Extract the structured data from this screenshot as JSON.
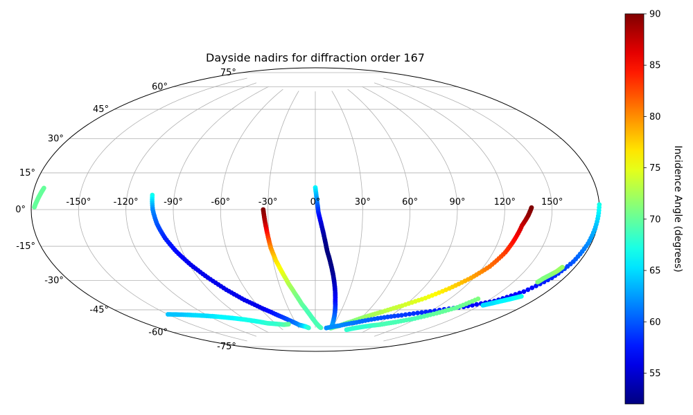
{
  "chart_data": {
    "type": "scatter",
    "projection": "aitoff",
    "title": "Dayside nadirs for diffraction order 167",
    "xlabel": "",
    "ylabel": "",
    "lon_ticks": [
      -150,
      -120,
      -90,
      -60,
      -30,
      0,
      30,
      60,
      90,
      120,
      150
    ],
    "lon_tick_labels": [
      "-150°",
      "-120°",
      "-90°",
      "-60°",
      "-30°",
      "0°",
      "30°",
      "60°",
      "90°",
      "120°",
      "150°"
    ],
    "lat_ticks": [
      75,
      60,
      45,
      30,
      15,
      0,
      -15,
      -30,
      -45,
      -60,
      -75
    ],
    "lat_tick_labels": [
      "75°",
      "60°",
      "45°",
      "30°",
      "15°",
      "0°",
      "-15°",
      "-30°",
      "-45°",
      "-60°",
      "-75°"
    ],
    "grid": true,
    "colorbar": {
      "label": "Incidence Angle (degrees)",
      "colormap": "jet",
      "range": [
        52,
        90
      ],
      "ticks": [
        55,
        60,
        65,
        70,
        75,
        80,
        85,
        90
      ],
      "tick_labels": [
        "55",
        "60",
        "65",
        "70",
        "75",
        "80",
        "85",
        "90"
      ]
    },
    "series": [
      {
        "lon": [
          -178,
          -177,
          -176,
          -175,
          -174
        ],
        "lat": [
          1,
          3,
          5,
          7,
          9
        ],
        "incidence": [
          70,
          70,
          70,
          70,
          70
        ]
      },
      {
        "lon": [
          -104,
          -103,
          -101,
          -98,
          -94,
          -89,
          -83,
          -76,
          -68,
          -58,
          -47,
          -36,
          -26,
          -18,
          -12
        ],
        "lat": [
          8,
          0,
          -8,
          -16,
          -24,
          -32,
          -40,
          -48,
          -55,
          -61,
          -66,
          -70,
          -73,
          -74,
          -75
        ],
        "incidence": [
          67,
          62,
          60,
          58,
          57,
          56,
          56,
          56,
          56,
          56,
          58,
          60,
          62,
          65,
          68
        ]
      },
      {
        "lon": [
          -33,
          -32,
          -31,
          -30,
          -28,
          -25,
          -22,
          -18,
          -14,
          -9,
          -4,
          1,
          6,
          10
        ],
        "lat": [
          0,
          -8,
          -16,
          -24,
          -32,
          -40,
          -47,
          -54,
          -60,
          -65,
          -69,
          -72,
          -74,
          -75
        ],
        "incidence": [
          90,
          88,
          84,
          80,
          77,
          75,
          73,
          71,
          70,
          69,
          69,
          69,
          69,
          69
        ]
      },
      {
        "lon": [
          0,
          1,
          2,
          4,
          6,
          8,
          11,
          14,
          17,
          20,
          24,
          28
        ],
        "lat": [
          14,
          6,
          -2,
          -10,
          -18,
          -26,
          -34,
          -42,
          -50,
          -58,
          -66,
          -74
        ],
        "incidence": [
          66,
          62,
          58,
          55,
          53,
          52,
          52,
          53,
          55,
          57,
          60,
          63
        ]
      },
      {
        "lon": [
          28,
          40,
          52,
          64,
          76,
          88,
          100,
          110,
          118,
          124,
          128,
          130,
          132,
          135,
          137
        ],
        "lat": [
          -75,
          -73,
          -70,
          -66,
          -62,
          -57,
          -51,
          -44,
          -37,
          -30,
          -22,
          -15,
          -8,
          -3,
          1
        ],
        "incidence": [
          70,
          71,
          71,
          72,
          73,
          74,
          75,
          77,
          79,
          81,
          83,
          85,
          87,
          89,
          90
        ]
      },
      {
        "lon": [
          20,
          40,
          60,
          80,
          100,
          120,
          140,
          155,
          165,
          172,
          176,
          178,
          179,
          180
        ],
        "lat": [
          -75,
          -73,
          -70,
          -66,
          -62,
          -57,
          -51,
          -45,
          -38,
          -30,
          -22,
          -14,
          -6,
          2
        ],
        "incidence": [
          62,
          62,
          61,
          60,
          59,
          58,
          57,
          56,
          57,
          58,
          60,
          62,
          64,
          67
        ]
      },
      {
        "lon": [
          -150,
          -140,
          -130,
          -120,
          -110,
          -100,
          -90,
          -80,
          -70,
          -60,
          -50,
          -42
        ],
        "lat": [
          -54,
          -56,
          -58,
          -60,
          -62,
          -64,
          -66,
          -68,
          -70,
          -71,
          -72,
          -72
        ],
        "incidence": [
          64,
          64,
          65,
          65,
          66,
          66,
          67,
          67,
          68,
          68,
          69,
          70
        ]
      },
      {
        "lon": [
          58,
          70,
          82,
          94,
          106,
          118,
          128,
          136,
          141
        ],
        "lat": [
          -75,
          -73,
          -71,
          -69,
          -66,
          -62,
          -57,
          -52,
          -46
        ],
        "incidence": [
          68,
          68,
          68,
          69,
          69,
          69,
          70,
          70,
          71
        ]
      },
      {
        "lon": [
          166,
          167,
          169,
          171,
          172
        ],
        "lat": [
          -33,
          -31,
          -29,
          -27,
          -25
        ],
        "incidence": [
          71,
          71,
          71,
          72,
          72
        ]
      },
      {
        "lon": [
          152,
          156,
          160,
          164,
          168
        ],
        "lat": [
          -48,
          -46,
          -44,
          -42,
          -40
        ],
        "incidence": [
          65,
          65,
          66,
          66,
          67
        ]
      }
    ]
  }
}
